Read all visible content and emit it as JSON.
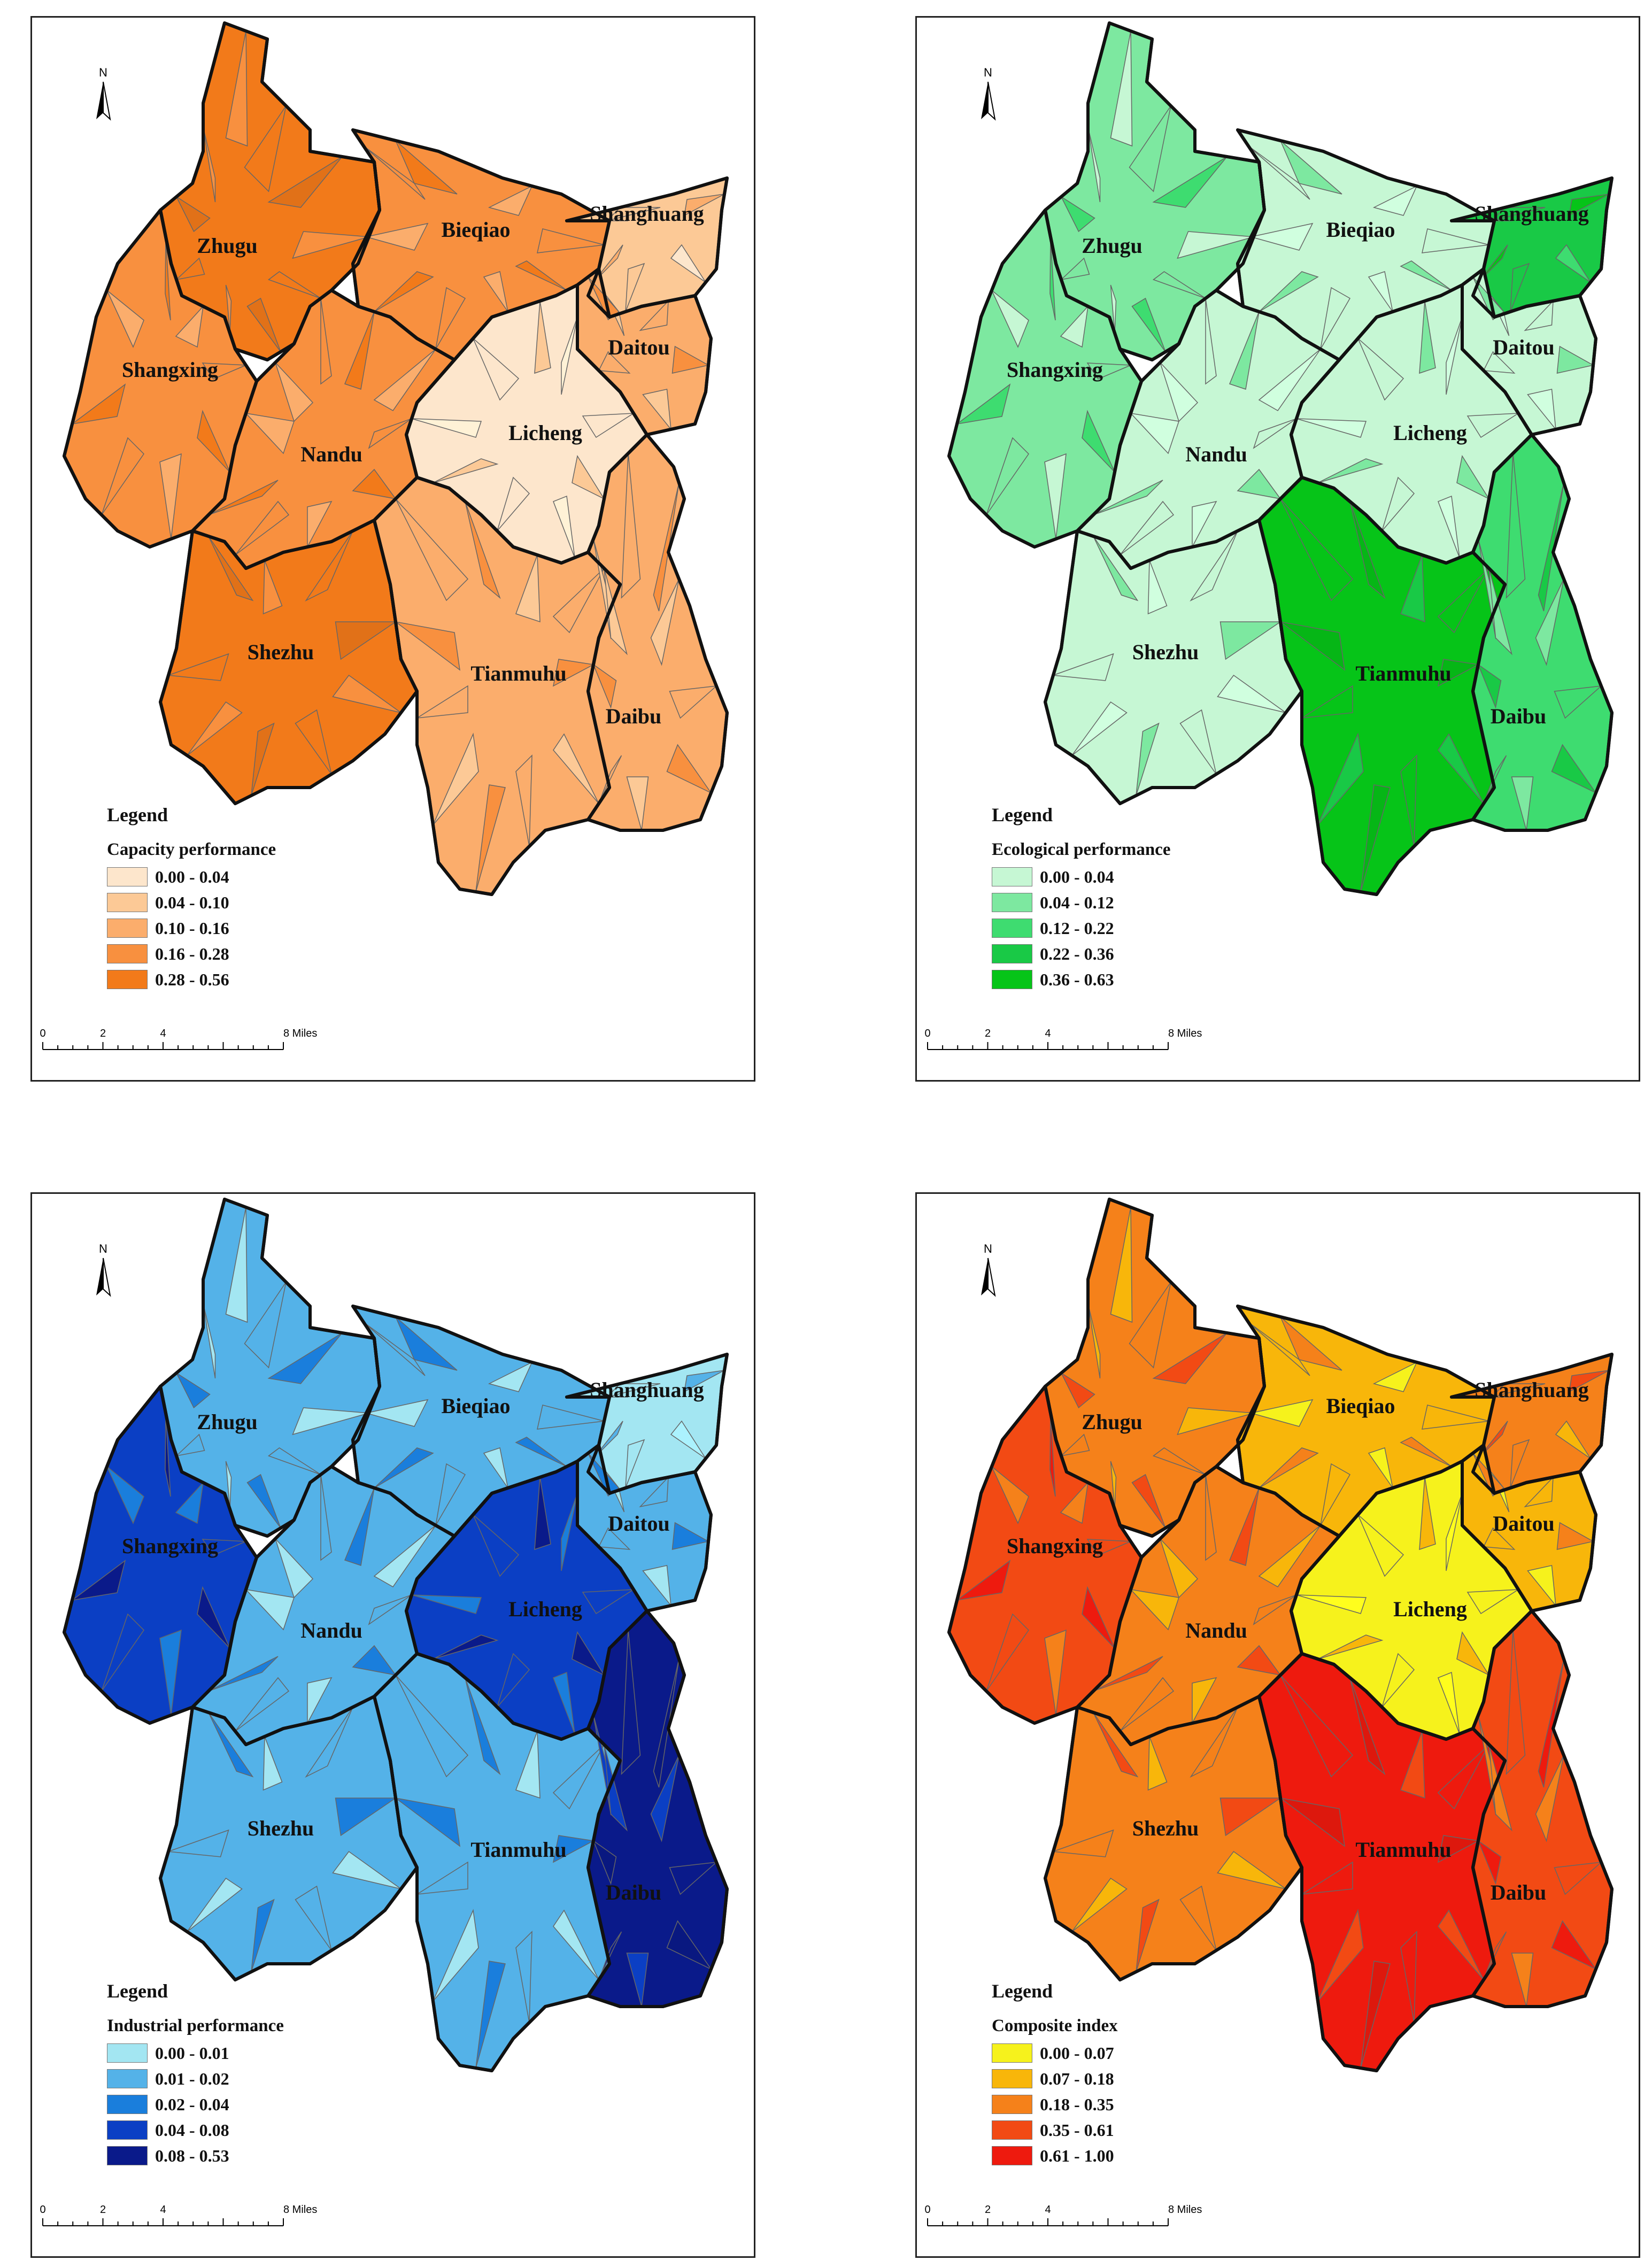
{
  "district_names": [
    "Zhugu",
    "Bieqiao",
    "Shanghuang",
    "Daitou",
    "Shangxing",
    "Licheng",
    "Nandu",
    "Shezhu",
    "Tianmuhu",
    "Daibu"
  ],
  "north_label": "N",
  "scale_bar": {
    "ticks": [
      "0",
      "2",
      "4",
      "8 Miles"
    ]
  },
  "panels": [
    {
      "id": "capacity",
      "legend_title": "Legend",
      "legend_subtitle": "Capacity performance",
      "classes": [
        {
          "label": "0.00 - 0.04",
          "color": "#fde6cc"
        },
        {
          "label": "0.04 - 0.10",
          "color": "#fcc996"
        },
        {
          "label": "0.10 - 0.16",
          "color": "#fbad6c"
        },
        {
          "label": "0.16 - 0.28",
          "color": "#f8903f"
        },
        {
          "label": "0.28 - 0.56",
          "color": "#f27a1a"
        }
      ],
      "district_class": {
        "Zhugu": 4,
        "Bieqiao": 3,
        "Shanghuang": 1,
        "Daitou": 2,
        "Shangxing": 3,
        "Licheng": 0,
        "Nandu": 3,
        "Shezhu": 4,
        "Tianmuhu": 2,
        "Daibu": 2
      }
    },
    {
      "id": "ecological",
      "legend_title": "Legend",
      "legend_subtitle": "Ecological performance",
      "classes": [
        {
          "label": "0.00 - 0.04",
          "color": "#c6f7d4"
        },
        {
          "label": "0.04 - 0.12",
          "color": "#7de8a0"
        },
        {
          "label": "0.12 - 0.22",
          "color": "#3edc70"
        },
        {
          "label": "0.22 - 0.36",
          "color": "#19c946"
        },
        {
          "label": "0.36 - 0.63",
          "color": "#06c418"
        }
      ],
      "district_class": {
        "Zhugu": 1,
        "Bieqiao": 0,
        "Shanghuang": 3,
        "Daitou": 0,
        "Shangxing": 1,
        "Licheng": 0,
        "Nandu": 0,
        "Shezhu": 0,
        "Tianmuhu": 4,
        "Daibu": 2
      }
    },
    {
      "id": "industrial",
      "legend_title": "Legend",
      "legend_subtitle": "Industrial performance",
      "classes": [
        {
          "label": "0.00 - 0.01",
          "color": "#a3e6f2"
        },
        {
          "label": "0.01 - 0.02",
          "color": "#54b2e8"
        },
        {
          "label": "0.02 - 0.04",
          "color": "#1a7edc"
        },
        {
          "label": "0.04 - 0.08",
          "color": "#0b3fc4"
        },
        {
          "label": "0.08 - 0.53",
          "color": "#0a1a8a"
        }
      ],
      "district_class": {
        "Zhugu": 1,
        "Bieqiao": 1,
        "Shanghuang": 0,
        "Daitou": 1,
        "Shangxing": 3,
        "Licheng": 3,
        "Nandu": 1,
        "Shezhu": 1,
        "Tianmuhu": 1,
        "Daibu": 4
      }
    },
    {
      "id": "composite",
      "legend_title": "Legend",
      "legend_subtitle": "Composite index",
      "classes": [
        {
          "label": "0.00 - 0.07",
          "color": "#f6f21c"
        },
        {
          "label": "0.07 - 0.18",
          "color": "#f8b60a"
        },
        {
          "label": "0.18 - 0.35",
          "color": "#f5811a"
        },
        {
          "label": "0.35 - 0.61",
          "color": "#f24a14"
        },
        {
          "label": "0.61 - 1.00",
          "color": "#ee1a0e"
        }
      ],
      "district_class": {
        "Zhugu": 2,
        "Bieqiao": 1,
        "Shanghuang": 2,
        "Daitou": 1,
        "Shangxing": 3,
        "Licheng": 0,
        "Nandu": 2,
        "Shezhu": 2,
        "Tianmuhu": 4,
        "Daibu": 3
      }
    }
  ]
}
